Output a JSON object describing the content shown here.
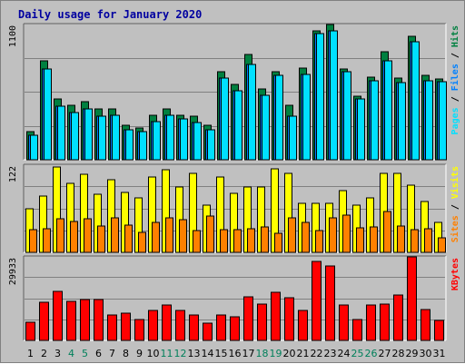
{
  "chart_data": {
    "type": "bar",
    "title": "Daily usage for January 2020",
    "categories": [
      "1",
      "2",
      "3",
      "4",
      "5",
      "6",
      "7",
      "8",
      "9",
      "10",
      "11",
      "12",
      "13",
      "14",
      "15",
      "16",
      "17",
      "18",
      "19",
      "20",
      "21",
      "22",
      "23",
      "24",
      "25",
      "26",
      "27",
      "28",
      "29",
      "30",
      "31"
    ],
    "weekend_days": [
      "4",
      "5",
      "11",
      "12",
      "18",
      "19",
      "25",
      "26"
    ],
    "panels": [
      {
        "id": "requests",
        "max_label": "1100",
        "ylim": [
          0,
          1100
        ],
        "series": [
          {
            "name": "Hits",
            "color": "#008040",
            "values": [
              230,
              800,
              490,
              440,
              470,
              410,
              410,
              280,
              260,
              360,
              410,
              360,
              350,
              280,
              710,
              610,
              850,
              570,
              710,
              440,
              740,
              1040,
              1090,
              730,
              510,
              670,
              870,
              660,
              1000,
              680,
              650
            ]
          },
          {
            "name": "Files",
            "color": "#0080ff",
            "values": [
              200,
              730,
              430,
              380,
              410,
              350,
              360,
              240,
              230,
              310,
              360,
              330,
              300,
              240,
              660,
              560,
              770,
              520,
              680,
              350,
              690,
              1020,
              1040,
              710,
              490,
              640,
              800,
              620,
              950,
              640,
              630
            ]
          },
          {
            "name": "Pages",
            "color": "#00e0ff",
            "values": [
              200,
              730,
              430,
              380,
              410,
              350,
              360,
              240,
              230,
              310,
              360,
              330,
              300,
              240,
              660,
              560,
              770,
              520,
              680,
              350,
              690,
              1020,
              1040,
              710,
              490,
              640,
              800,
              620,
              950,
              640,
              630
            ]
          }
        ],
        "axis_label": [
          {
            "text": "Pages",
            "color": "#00e0ff"
          },
          {
            "text": " / ",
            "color": "#000000"
          },
          {
            "text": "Files",
            "color": "#0080ff"
          },
          {
            "text": " / ",
            "color": "#000000"
          },
          {
            "text": "Hits",
            "color": "#008040"
          }
        ]
      },
      {
        "id": "visits",
        "max_label": "122",
        "ylim": [
          0,
          122
        ],
        "series": [
          {
            "name": "Visits",
            "color": "#ffff00",
            "values": [
              60,
              78,
              118,
              96,
              108,
              81,
              100,
              83,
              76,
              105,
              114,
              91,
              110,
              65,
              104,
              82,
              90,
              90,
              116,
              110,
              68,
              68,
              68,
              86,
              66,
              75,
              110,
              110,
              93,
              71,
              42
            ]
          },
          {
            "name": "Sites",
            "color": "#ff8000",
            "values": [
              32,
              33,
              47,
              43,
              47,
              36,
              48,
              38,
              28,
              41,
              48,
              45,
              30,
              50,
              32,
              32,
              33,
              35,
              26,
              48,
              42,
              30,
              48,
              52,
              34,
              35,
              56,
              36,
              31,
              33,
              20
            ]
          }
        ],
        "axis_label": [
          {
            "text": "Sites",
            "color": "#ff8000"
          },
          {
            "text": " / ",
            "color": "#000000"
          },
          {
            "text": "Visits",
            "color": "#ffff00"
          }
        ]
      },
      {
        "id": "kbytes",
        "max_label": "29933",
        "ylim": [
          0,
          29933
        ],
        "series": [
          {
            "name": "KBytes",
            "color": "#ff0000",
            "values": [
              6500,
              13500,
              17500,
              14000,
              14500,
              14500,
              9000,
              9500,
              7500,
              10500,
              12500,
              10500,
              9000,
              6000,
              9000,
              8500,
              15500,
              13000,
              17000,
              15000,
              10500,
              28000,
              26500,
              12500,
              7500,
              12500,
              13000,
              16000,
              29500,
              11000,
              7000
            ]
          }
        ],
        "axis_label": [
          {
            "text": "KBytes",
            "color": "#ff0000"
          }
        ]
      }
    ],
    "grid": true
  }
}
